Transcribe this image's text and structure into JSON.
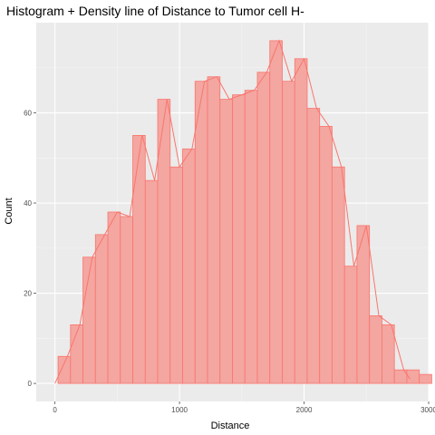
{
  "chart_data": {
    "type": "bar",
    "title": "Histogram + Density line of Distance to Tumor cell H-",
    "xlabel": "Distance",
    "ylabel": "Count",
    "xlim": [
      -150,
      3000
    ],
    "ylim": [
      -4,
      80
    ],
    "xticks": [
      0,
      1000,
      2000,
      3000
    ],
    "yticks": [
      0,
      20,
      40,
      60
    ],
    "bin_width": 100,
    "bins": [
      {
        "x": 75,
        "count": 6
      },
      {
        "x": 175,
        "count": 13
      },
      {
        "x": 275,
        "count": 28
      },
      {
        "x": 375,
        "count": 33
      },
      {
        "x": 475,
        "count": 38
      },
      {
        "x": 575,
        "count": 37
      },
      {
        "x": 675,
        "count": 55
      },
      {
        "x": 775,
        "count": 45
      },
      {
        "x": 875,
        "count": 63
      },
      {
        "x": 975,
        "count": 48
      },
      {
        "x": 1075,
        "count": 52
      },
      {
        "x": 1175,
        "count": 67
      },
      {
        "x": 1275,
        "count": 68
      },
      {
        "x": 1375,
        "count": 63
      },
      {
        "x": 1475,
        "count": 64
      },
      {
        "x": 1575,
        "count": 65
      },
      {
        "x": 1675,
        "count": 69
      },
      {
        "x": 1775,
        "count": 76
      },
      {
        "x": 1875,
        "count": 67
      },
      {
        "x": 1975,
        "count": 72
      },
      {
        "x": 2075,
        "count": 61
      },
      {
        "x": 2175,
        "count": 57
      },
      {
        "x": 2275,
        "count": 48
      },
      {
        "x": 2375,
        "count": 26
      },
      {
        "x": 2475,
        "count": 35
      },
      {
        "x": 2575,
        "count": 15
      },
      {
        "x": 2675,
        "count": 13
      },
      {
        "x": 2775,
        "count": 3
      },
      {
        "x": 2875,
        "count": 3
      },
      {
        "x": 2975,
        "count": 2
      }
    ],
    "line": {
      "x": [
        0,
        100,
        200,
        300,
        400,
        500,
        600,
        700,
        800,
        900,
        1000,
        1100,
        1200,
        1300,
        1400,
        1500,
        1600,
        1700,
        1800,
        1900,
        2000,
        2100,
        2200,
        2300,
        2400,
        2500,
        2600,
        2700,
        2800,
        2850
      ],
      "y": [
        0,
        6,
        13,
        28,
        33,
        38,
        37,
        55,
        45,
        63,
        48,
        52,
        67,
        68,
        63,
        64,
        65,
        69,
        76,
        67,
        72,
        61,
        57,
        48,
        26,
        35,
        15,
        13,
        3,
        1
      ]
    },
    "colors": {
      "bar_fill": "#f4a6a1",
      "bar_stroke": "#f8766d",
      "line": "#f8766d",
      "panel": "#ebebeb",
      "grid_major": "#ffffff",
      "grid_minor": "#f5f5f5",
      "tick": "#4d4d4d"
    },
    "grid": true,
    "legend": "none"
  }
}
